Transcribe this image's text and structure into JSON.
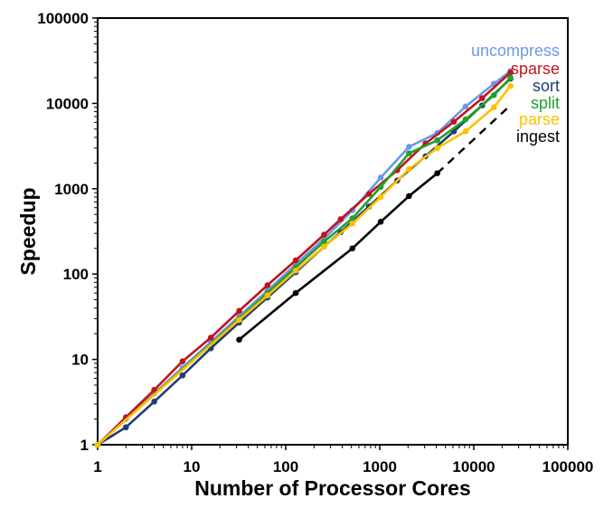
{
  "chart_data": {
    "type": "line",
    "title": "",
    "xlabel": "Number of Processor Cores",
    "ylabel": "Speedup",
    "x_scale": "log",
    "y_scale": "log",
    "xlim": [
      1,
      100000
    ],
    "ylim": [
      1,
      100000
    ],
    "xticks": [
      "1",
      "10",
      "100",
      "1000",
      "10000",
      "100000"
    ],
    "yticks": [
      "1",
      "10",
      "100",
      "1000",
      "10000",
      "100000"
    ],
    "grid": false,
    "legend_placement": "top-right",
    "series": [
      {
        "name": "uncompress",
        "color": "#6f97e8",
        "x": [
          1,
          2,
          4,
          8,
          16,
          32,
          64,
          128,
          256,
          512,
          1024,
          2048,
          4096,
          8192,
          16384,
          24576
        ],
        "y": [
          1,
          2,
          4,
          8,
          16,
          32,
          64,
          130,
          260,
          560,
          1350,
          3100,
          4500,
          9200,
          17000,
          24000
        ]
      },
      {
        "name": "sparse",
        "color": "#c0141c",
        "x": [
          1,
          2,
          4,
          8,
          16,
          32,
          64,
          128,
          256,
          384,
          768,
          1536,
          3072,
          6144,
          12288,
          24576
        ],
        "y": [
          1,
          2.1,
          4.4,
          9.5,
          18,
          37,
          74,
          145,
          290,
          440,
          870,
          1650,
          3400,
          6100,
          11500,
          23000
        ]
      },
      {
        "name": "sort",
        "color": "#1f3e6e",
        "x": [
          1,
          2,
          4,
          8,
          16,
          32,
          64,
          128,
          256,
          384,
          768,
          1536,
          3072,
          6144,
          12288,
          24576
        ],
        "y": [
          1,
          1.6,
          3.2,
          6.5,
          13.5,
          27,
          53,
          105,
          210,
          310,
          620,
          1250,
          2400,
          4700,
          9500,
          19500
        ]
      },
      {
        "name": "split",
        "color": "#21a12b",
        "x": [
          1,
          32,
          64,
          128,
          256,
          512,
          1024,
          2048,
          4096,
          8192,
          16384,
          24576
        ],
        "y": [
          1,
          30,
          60,
          120,
          240,
          450,
          1050,
          2600,
          3700,
          6500,
          12500,
          20000
        ]
      },
      {
        "name": "parse",
        "color": "#ffc000",
        "x": [
          1,
          32,
          64,
          128,
          256,
          512,
          1024,
          2048,
          4096,
          8192,
          16384,
          24576
        ],
        "y": [
          1,
          29,
          56,
          110,
          210,
          390,
          800,
          1700,
          3000,
          4700,
          9000,
          16000
        ]
      },
      {
        "name": "ingest",
        "color": "#000000",
        "x": [
          32,
          128,
          512,
          1024,
          2048,
          4096
        ],
        "y": [
          17,
          60,
          200,
          410,
          820,
          1520
        ],
        "projection": {
          "x": [
            4096,
            24576
          ],
          "y": [
            1520,
            9500
          ],
          "style": "dashed"
        }
      }
    ]
  }
}
